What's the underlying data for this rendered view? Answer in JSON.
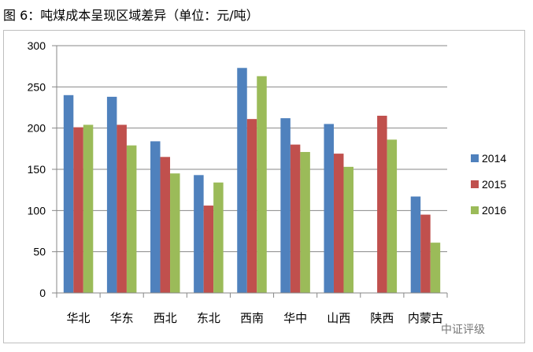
{
  "caption": "图 6：吨煤成本呈现区域差异（单位：元/吨）",
  "watermark": "中证评级",
  "chart_data": {
    "type": "bar",
    "title": "",
    "xlabel": "",
    "ylabel": "",
    "ylim": [
      0,
      300
    ],
    "yticks": [
      0,
      50,
      100,
      150,
      200,
      250,
      300
    ],
    "grid": true,
    "legend_position": "right",
    "categories": [
      "华北",
      "华东",
      "西北",
      "东北",
      "西南",
      "华中",
      "山西",
      "陕西",
      "内蒙古"
    ],
    "series": [
      {
        "name": "2014",
        "color": "#4f81bd",
        "values": [
          240,
          238,
          184,
          143,
          273,
          212,
          205,
          null,
          117
        ]
      },
      {
        "name": "2015",
        "color": "#c0504d",
        "values": [
          201,
          204,
          165,
          106,
          211,
          180,
          169,
          215,
          95
        ]
      },
      {
        "name": "2016",
        "color": "#9bbb59",
        "values": [
          204,
          179,
          145,
          134,
          263,
          171,
          153,
          186,
          61
        ]
      }
    ]
  }
}
